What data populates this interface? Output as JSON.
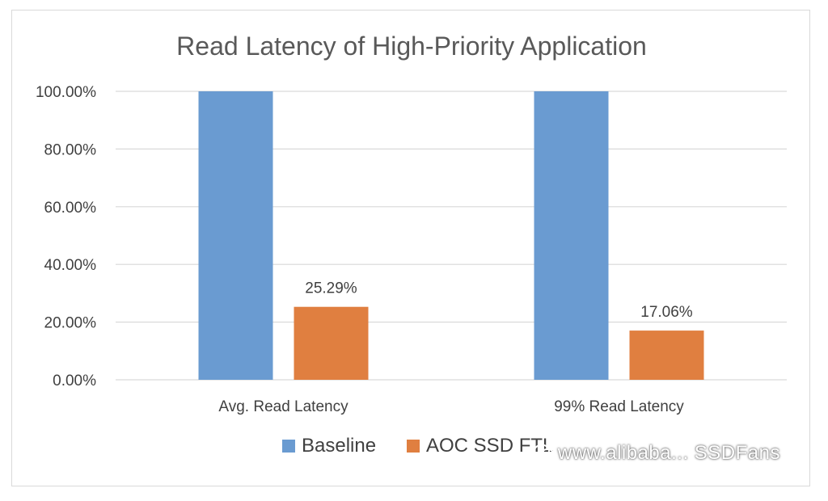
{
  "chart_data": {
    "type": "bar",
    "title": "Read Latency of High-Priority Application",
    "categories": [
      "Avg. Read Latency",
      "99% Read Latency"
    ],
    "series": [
      {
        "name": "Baseline",
        "color": "#6a9bd1",
        "values": [
          100.0,
          100.0
        ],
        "labels": [
          "",
          ""
        ]
      },
      {
        "name": "AOC SSD FTL",
        "color": "#e07f40",
        "values": [
          25.29,
          17.06
        ],
        "labels": [
          "25.29%",
          "17.06%"
        ]
      }
    ],
    "ylim": [
      0,
      100
    ],
    "yticks": [
      "0.00%",
      "20.00%",
      "40.00%",
      "60.00%",
      "80.00%",
      "100.00%"
    ],
    "ytick_values": [
      0,
      20,
      40,
      60,
      80,
      100
    ],
    "grid": true,
    "legend_position": "bottom"
  },
  "watermark": {
    "text": "www.alibaba... SSDFans",
    "icon": "wechat-icon"
  }
}
